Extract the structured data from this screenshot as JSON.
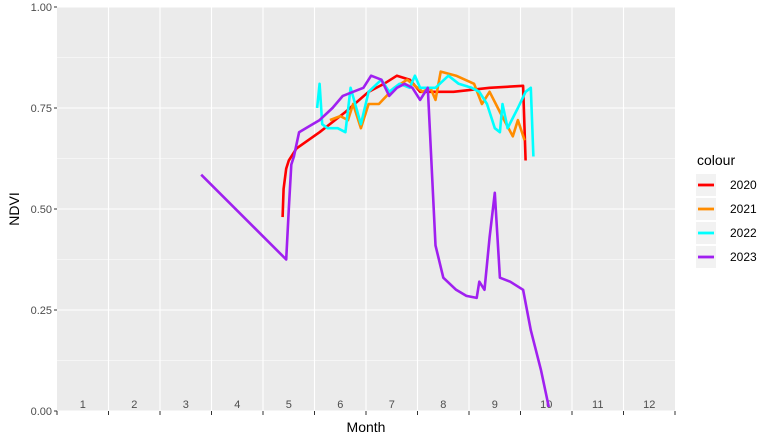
{
  "chart_data": {
    "type": "line",
    "title": "",
    "xlabel": "Month",
    "ylabel": "NDVI",
    "xlim": [
      0.5,
      12.5
    ],
    "ylim": [
      0,
      1
    ],
    "grid": true,
    "legend_title": "colour",
    "legend_position": "right",
    "y_ticks": [
      0,
      0.25,
      0.5,
      0.75,
      1
    ],
    "y_tick_labels": [
      "0.00",
      "0.25",
      "0.50",
      "0.75",
      "1.00"
    ],
    "x_ticks": [
      1,
      2,
      3,
      4,
      5,
      6,
      7,
      8,
      9,
      10,
      11,
      12
    ],
    "x_tick_labels": [
      "1",
      "2",
      "3",
      "4",
      "5",
      "6",
      "7",
      "8",
      "9",
      "10",
      "11",
      "12"
    ],
    "series": [
      {
        "name": "2020",
        "color": "#ff0000",
        "x": [
          4.88,
          4.9,
          4.95,
          5.0,
          5.15,
          5.6,
          6.1,
          6.55,
          6.85,
          7.1,
          7.35,
          7.55,
          8.2,
          8.9,
          9.55,
          9.6
        ],
        "y": [
          0.48,
          0.55,
          0.6,
          0.62,
          0.65,
          0.69,
          0.74,
          0.79,
          0.81,
          0.83,
          0.82,
          0.79,
          0.79,
          0.8,
          0.805,
          0.62
        ]
      },
      {
        "name": "2021",
        "color": "#ff8c00",
        "x": [
          5.8,
          6.0,
          6.15,
          6.25,
          6.4,
          6.55,
          6.75,
          7.05,
          7.3,
          7.6,
          7.75,
          7.85,
          7.95,
          8.25,
          8.6,
          8.75,
          8.9,
          9.1,
          9.35,
          9.45,
          9.58
        ],
        "y": [
          0.72,
          0.73,
          0.72,
          0.76,
          0.7,
          0.76,
          0.76,
          0.8,
          0.82,
          0.79,
          0.8,
          0.77,
          0.84,
          0.83,
          0.81,
          0.76,
          0.79,
          0.74,
          0.68,
          0.72,
          0.67
        ]
      },
      {
        "name": "2022",
        "color": "#00ffff",
        "x": [
          5.55,
          5.6,
          5.65,
          5.75,
          5.95,
          6.1,
          6.2,
          6.4,
          6.55,
          6.8,
          6.95,
          7.15,
          7.35,
          7.45,
          7.55,
          7.7,
          7.85,
          8.1,
          8.3,
          8.55,
          8.7,
          8.85,
          9.0,
          9.1,
          9.15,
          9.25,
          9.45,
          9.6,
          9.7,
          9.75
        ],
        "y": [
          0.75,
          0.81,
          0.71,
          0.7,
          0.7,
          0.69,
          0.8,
          0.71,
          0.79,
          0.82,
          0.79,
          0.81,
          0.8,
          0.83,
          0.8,
          0.8,
          0.8,
          0.83,
          0.81,
          0.8,
          0.79,
          0.76,
          0.7,
          0.69,
          0.76,
          0.7,
          0.75,
          0.79,
          0.8,
          0.63
        ]
      },
      {
        "name": "2023",
        "color": "#a020f0",
        "x": [
          3.3,
          4.95,
          5.0,
          5.05,
          5.1,
          5.2,
          5.6,
          5.85,
          6.05,
          6.25,
          6.45,
          6.6,
          6.8,
          6.95,
          7.1,
          7.25,
          7.4,
          7.55,
          7.7,
          7.85,
          8.0,
          8.25,
          8.45,
          8.65,
          8.7,
          8.8,
          8.9,
          9.0,
          9.1,
          9.3,
          9.55,
          9.7,
          9.9,
          10.05
        ],
        "y": [
          0.585,
          0.375,
          0.5,
          0.61,
          0.63,
          0.69,
          0.72,
          0.75,
          0.78,
          0.79,
          0.8,
          0.83,
          0.82,
          0.78,
          0.8,
          0.81,
          0.8,
          0.77,
          0.8,
          0.41,
          0.33,
          0.3,
          0.285,
          0.28,
          0.32,
          0.3,
          0.43,
          0.54,
          0.33,
          0.32,
          0.3,
          0.2,
          0.1,
          0.01
        ]
      }
    ]
  }
}
